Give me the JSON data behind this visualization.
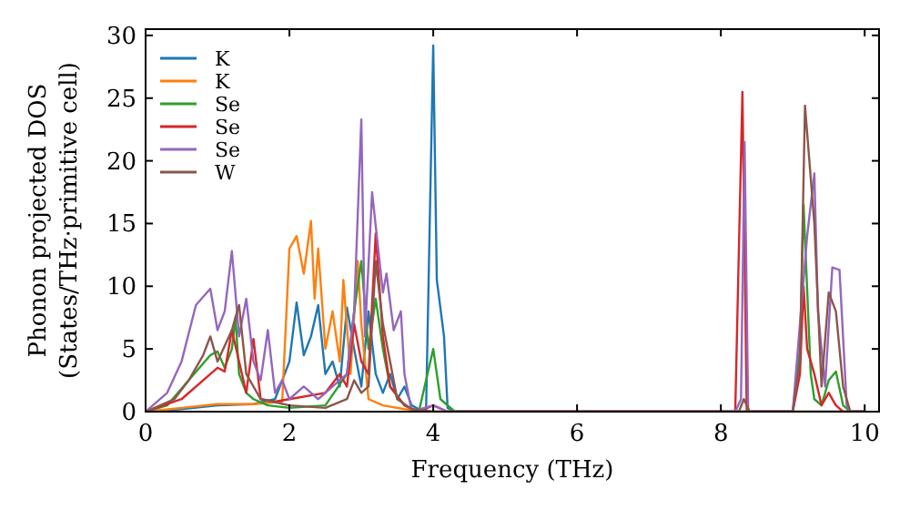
{
  "chart_data": {
    "type": "line",
    "xlabel": "Frequency (THz)",
    "ylabel": "Phonon projected DOS\n(States/THz·primitive cell)",
    "xlim": [
      0,
      10.2
    ],
    "ylim": [
      0,
      30.5
    ],
    "xticks": [
      0,
      2,
      4,
      6,
      8,
      10
    ],
    "yticks": [
      0,
      5,
      10,
      15,
      20,
      25,
      30
    ],
    "legend": "top left",
    "grid": false,
    "series": [
      {
        "name": "K",
        "color": "#1f77b4",
        "x": [
          0,
          0.5,
          1,
          1.5,
          1.8,
          2,
          2.1,
          2.2,
          2.3,
          2.4,
          2.5,
          2.6,
          2.7,
          2.8,
          2.9,
          3,
          3.1,
          3.2,
          3.3,
          3.4,
          3.5,
          3.6,
          3.7,
          3.8,
          3.9,
          4,
          4.05,
          4.15,
          4.2,
          4.3,
          10
        ],
        "values": [
          0,
          0.2,
          0.5,
          0.6,
          1,
          4,
          8.7,
          4.5,
          6,
          8.5,
          3,
          4,
          2,
          8.3,
          5,
          2,
          8,
          3,
          1.5,
          3,
          1,
          2,
          0.5,
          0.2,
          0,
          29.2,
          10.5,
          6,
          0.3,
          0,
          0
        ]
      },
      {
        "name": "K",
        "color": "#ff7f0e",
        "x": [
          0,
          0.5,
          1,
          1.5,
          1.9,
          2,
          2.1,
          2.2,
          2.3,
          2.35,
          2.4,
          2.5,
          2.6,
          2.7,
          2.75,
          2.85,
          2.95,
          3,
          3.1,
          3.3,
          3.6,
          4,
          10
        ],
        "values": [
          0,
          0.3,
          0.6,
          0.6,
          0.8,
          13,
          14,
          11,
          15.2,
          9,
          13,
          5,
          8,
          4,
          10.5,
          3,
          12,
          7,
          1,
          0.5,
          0.2,
          0,
          0
        ]
      },
      {
        "name": "Se",
        "color": "#2ca02c",
        "x": [
          0,
          0.3,
          0.6,
          0.9,
          1,
          1.1,
          1.2,
          1.25,
          1.3,
          1.4,
          1.5,
          1.7,
          2,
          2.5,
          2.8,
          2.9,
          3,
          3.1,
          3.2,
          3.3,
          3.4,
          3.6,
          3.8,
          4,
          4.1,
          4.3,
          9,
          9.1,
          9.15,
          9.25,
          9.3,
          9.4,
          9.5,
          9.6,
          9.7,
          9.8,
          10
        ],
        "values": [
          0,
          0.5,
          2.5,
          4.5,
          4.8,
          3.5,
          5,
          7.5,
          3,
          1.5,
          1,
          0.5,
          0.3,
          0.5,
          3,
          8,
          12,
          5,
          9,
          5,
          2,
          0.5,
          0,
          5,
          1,
          0,
          0,
          5,
          16.5,
          3,
          1,
          0.5,
          2.5,
          3.2,
          0.5,
          0,
          0
        ]
      },
      {
        "name": "Se",
        "color": "#d62728",
        "x": [
          0,
          0.5,
          0.8,
          1,
          1.1,
          1.2,
          1.3,
          1.4,
          1.5,
          1.6,
          1.8,
          2,
          2.5,
          2.7,
          2.8,
          2.9,
          3,
          3.1,
          3.2,
          3.3,
          3.4,
          3.6,
          3.8,
          4,
          4.2,
          8.2,
          8.3,
          8.36,
          9,
          9.1,
          9.15,
          9.2,
          9.3,
          9.4,
          9.5,
          9.6,
          9.7,
          10
        ],
        "values": [
          0,
          1,
          2.5,
          3.5,
          3.2,
          6.5,
          4,
          1.5,
          5.8,
          1,
          0.8,
          1,
          1.5,
          3,
          2,
          7,
          4,
          3,
          14.2,
          6,
          2,
          0.5,
          0,
          0.5,
          0,
          0,
          25.5,
          0,
          0,
          3,
          10,
          5,
          3,
          0.5,
          1.5,
          0.5,
          0,
          0
        ]
      },
      {
        "name": "Se",
        "color": "#9467bd",
        "x": [
          0,
          0.3,
          0.5,
          0.7,
          0.9,
          1,
          1.1,
          1.2,
          1.3,
          1.4,
          1.5,
          1.6,
          1.7,
          1.8,
          1.9,
          2,
          2.2,
          2.4,
          2.6,
          2.8,
          2.9,
          3,
          3.05,
          3.15,
          3.3,
          3.35,
          3.45,
          3.55,
          3.6,
          3.7,
          4,
          4.2,
          8.2,
          8.28,
          8.33,
          8.38,
          9,
          9.2,
          9.3,
          9.35,
          9.45,
          9.55,
          9.65,
          9.75,
          9.8,
          10
        ],
        "values": [
          0,
          1.5,
          4,
          8.5,
          9.8,
          6.5,
          8,
          12.8,
          6,
          9,
          4,
          2.5,
          6.5,
          1.5,
          2.5,
          1,
          2,
          1,
          2,
          3,
          8,
          23.3,
          6,
          17.5,
          9.5,
          11,
          6.5,
          8,
          3,
          0,
          0.5,
          0,
          0,
          1,
          21.5,
          0,
          0,
          14,
          19,
          8,
          2,
          11.5,
          11.3,
          0.5,
          0,
          0
        ]
      },
      {
        "name": "W",
        "color": "#8c564b",
        "x": [
          0,
          0.4,
          0.6,
          0.8,
          0.9,
          1,
          1.2,
          1.3,
          1.4,
          1.6,
          2,
          2.5,
          2.8,
          2.9,
          3,
          3.1,
          3.2,
          3.3,
          3.4,
          3.5,
          3.7,
          4,
          8.25,
          8.32,
          8.4,
          9,
          9.1,
          9.17,
          9.3,
          9.4,
          9.5,
          9.6,
          9.7,
          9.8,
          10
        ],
        "values": [
          0,
          1,
          2.5,
          4.5,
          6,
          4,
          6.5,
          8.5,
          3,
          1,
          0.5,
          0.3,
          1,
          2.5,
          1.5,
          2,
          12,
          7,
          4,
          1,
          0.2,
          0,
          0,
          1,
          0,
          0,
          4,
          24.4,
          15,
          2,
          9.5,
          8,
          2,
          0,
          0
        ]
      }
    ]
  }
}
